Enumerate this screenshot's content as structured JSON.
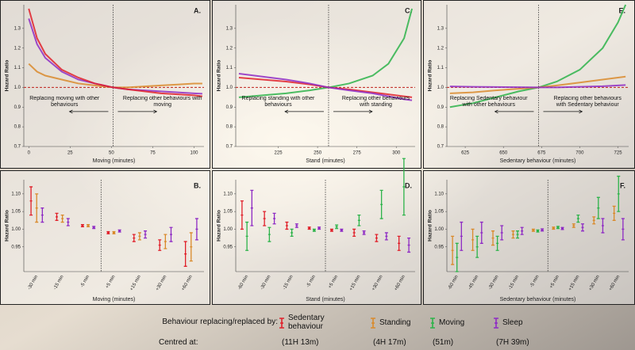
{
  "chart_data": [
    {
      "type": "line",
      "label": "A.",
      "y_label": "Hazard Ratio",
      "x_label": "Moving (minutes)",
      "xlim": [
        -3,
        106
      ],
      "xticks": [
        0,
        25,
        50,
        75,
        100
      ],
      "ylim": [
        0.7,
        1.42
      ],
      "yticks": [
        0.7,
        0.8,
        0.9,
        {
          "value": 1,
          "label": "1.0"
        },
        1.1,
        1.2,
        1.3
      ],
      "vline": 51,
      "hline": 1,
      "x": [
        0,
        5,
        10,
        20,
        30,
        40,
        51,
        60,
        70,
        80,
        90,
        100,
        105
      ],
      "series": [
        {
          "color": "#d98a2b",
          "values": [
            1.12,
            1.08,
            1.06,
            1.04,
            1.02,
            1.01,
            1.0,
            1.0,
            1.005,
            1.01,
            1.015,
            1.02,
            1.02
          ]
        },
        {
          "color": "#8e2bc4",
          "values": [
            1.35,
            1.22,
            1.15,
            1.08,
            1.04,
            1.02,
            1.0,
            0.99,
            0.985,
            0.98,
            0.975,
            0.97,
            0.968
          ]
        },
        {
          "color": "#e0202a",
          "values": [
            1.4,
            1.25,
            1.17,
            1.09,
            1.05,
            1.02,
            1.0,
            0.99,
            0.98,
            0.97,
            0.965,
            0.96,
            0.955
          ]
        }
      ],
      "annotations": [
        "Replacing moving with other behaviours",
        "Replacing other behaviours with moving"
      ]
    },
    {
      "type": "errorbar",
      "label": "B.",
      "y_label": "Hazard Ratio",
      "x_label": "Moving (minutes)",
      "categories": [
        "-30 min",
        "-15 min",
        "-5 min",
        "+5 min",
        "+15 min",
        "+30 min",
        "+60 min"
      ],
      "ylim": [
        0.88,
        1.14
      ],
      "yticks": [
        0.95,
        {
          "value": 1,
          "label": "1.00"
        },
        1.05,
        {
          "value": 1.1,
          "label": "1.10"
        }
      ],
      "series": [
        {
          "color": "#e0202a",
          "values": [
            1.08,
            1.035,
            1.01,
            0.99,
            0.975,
            0.955,
            0.93
          ],
          "errors": [
            0.04,
            0.01,
            0.003,
            0.003,
            0.01,
            0.015,
            0.035
          ]
        },
        {
          "color": "#d98a2b",
          "values": [
            1.06,
            1.03,
            1.01,
            0.99,
            0.98,
            0.965,
            0.95
          ],
          "errors": [
            0.04,
            0.01,
            0.003,
            0.003,
            0.01,
            0.02,
            0.04
          ]
        },
        {
          "color": "#8e2bc4",
          "values": [
            1.04,
            1.02,
            1.005,
            0.995,
            0.985,
            0.985,
            1.0
          ],
          "errors": [
            0.02,
            0.01,
            0.003,
            0.003,
            0.01,
            0.02,
            0.03
          ]
        }
      ]
    },
    {
      "type": "line",
      "label": "C.",
      "y_label": "Hazard Ratio",
      "x_label": "Stand (minutes)",
      "xlim": [
        198,
        312
      ],
      "xticks": [
        225,
        250,
        275,
        300
      ],
      "ylim": [
        0.7,
        1.42
      ],
      "yticks": [
        0.7,
        0.8,
        0.9,
        {
          "value": 1,
          "label": "1.0"
        },
        1.1,
        1.2,
        1.3
      ],
      "vline": 257,
      "hline": 1,
      "x": [
        200,
        215,
        230,
        245,
        257,
        270,
        285,
        295,
        305,
        310
      ],
      "series": [
        {
          "color": "#2db34a",
          "values": [
            0.95,
            0.96,
            0.97,
            0.985,
            1.0,
            1.02,
            1.06,
            1.12,
            1.25,
            1.4
          ]
        },
        {
          "color": "#e0202a",
          "values": [
            1.05,
            1.04,
            1.03,
            1.015,
            1.0,
            0.99,
            0.975,
            0.965,
            0.955,
            0.95
          ]
        },
        {
          "color": "#8e2bc4",
          "values": [
            1.07,
            1.055,
            1.04,
            1.02,
            1.0,
            0.985,
            0.97,
            0.955,
            0.94,
            0.935
          ]
        }
      ],
      "annotations": [
        "Replacing standing with other behaviours",
        "Replacing other behaviours with standing"
      ]
    },
    {
      "type": "errorbar",
      "label": "D.",
      "y_label": "Hazard Ratio",
      "x_label": "Stand (minutes)",
      "categories": [
        "-60 min",
        "-30 min",
        "-15 min",
        "-5 min",
        "+5 min",
        "+15 min",
        "+30 min",
        "+60 min"
      ],
      "ylim": [
        0.88,
        1.14
      ],
      "yticks": [
        0.95,
        {
          "value": 1,
          "label": "1.00"
        },
        1.05,
        {
          "value": 1.1,
          "label": "1.10"
        }
      ],
      "series": [
        {
          "color": "#e0202a",
          "values": [
            1.04,
            1.03,
            1.01,
            1.003,
            0.997,
            0.99,
            0.975,
            0.96
          ],
          "errors": [
            0.04,
            0.02,
            0.01,
            0.003,
            0.003,
            0.01,
            0.01,
            0.02
          ]
        },
        {
          "color": "#2db34a",
          "values": [
            0.98,
            0.985,
            0.99,
            0.997,
            1.007,
            1.025,
            1.07,
            1.12
          ],
          "errors": [
            0.04,
            0.02,
            0.01,
            0.003,
            0.005,
            0.015,
            0.04,
            0.08
          ]
        },
        {
          "color": "#8e2bc4",
          "values": [
            1.06,
            1.03,
            1.01,
            1.003,
            0.997,
            0.99,
            0.98,
            0.955
          ],
          "errors": [
            0.05,
            0.015,
            0.005,
            0.003,
            0.003,
            0.005,
            0.01,
            0.02
          ]
        }
      ]
    },
    {
      "type": "line",
      "label": "E.",
      "y_label": "Hazard Ratio",
      "x_label": "Sedentary behaviour (minutes)",
      "xlim": [
        613,
        732
      ],
      "xticks": [
        625,
        650,
        675,
        700,
        725
      ],
      "ylim": [
        0.7,
        1.42
      ],
      "yticks": [
        0.7,
        0.8,
        0.9,
        {
          "value": 1,
          "label": "1.0"
        },
        1.1,
        1.2,
        1.3
      ],
      "vline": 673,
      "hline": 1,
      "x": [
        615,
        630,
        645,
        660,
        673,
        685,
        700,
        715,
        725,
        730
      ],
      "series": [
        {
          "color": "#2db34a",
          "values": [
            0.9,
            0.92,
            0.95,
            0.98,
            1.0,
            1.03,
            1.09,
            1.2,
            1.33,
            1.42
          ]
        },
        {
          "color": "#d98a2b",
          "values": [
            0.97,
            0.975,
            0.985,
            0.993,
            1.0,
            1.01,
            1.025,
            1.04,
            1.05,
            1.055
          ]
        },
        {
          "color": "#8e2bc4",
          "values": [
            1.005,
            1.003,
            1.002,
            1.001,
            1.0,
            1.0,
            1.003,
            1.006,
            1.01,
            1.012
          ]
        }
      ],
      "annotations": [
        "Replacing Sedentary behaviour with other behaviours",
        "Replacing other behaviours with Sedentary behaviour"
      ]
    },
    {
      "type": "errorbar",
      "label": "F.",
      "y_label": "Hazard Ratio",
      "x_label": "Sedentary behaviour (minutes)",
      "categories": [
        "-60 min",
        "-45 min",
        "-30 min",
        "-15 min",
        "-5 min",
        "+5 min",
        "+15 min",
        "+30 min",
        "+60 min"
      ],
      "ylim": [
        0.88,
        1.14
      ],
      "yticks": [
        0.95,
        {
          "value": 1,
          "label": "1.00"
        },
        1.05,
        {
          "value": 1.1,
          "label": "1.10"
        }
      ],
      "series": [
        {
          "color": "#d98a2b",
          "values": [
            0.94,
            0.97,
            0.975,
            0.985,
            0.997,
            1.003,
            1.01,
            1.025,
            1.045
          ],
          "errors": [
            0.04,
            0.03,
            0.02,
            0.01,
            0.003,
            0.003,
            0.005,
            0.01,
            0.02
          ]
        },
        {
          "color": "#2db34a",
          "values": [
            0.92,
            0.95,
            0.96,
            0.985,
            0.995,
            1.005,
            1.03,
            1.06,
            1.1
          ],
          "errors": [
            0.04,
            0.03,
            0.02,
            0.01,
            0.003,
            0.003,
            0.01,
            0.03,
            0.05
          ]
        },
        {
          "color": "#8e2bc4",
          "values": [
            0.98,
            0.99,
            0.99,
            0.995,
            0.998,
            1.002,
            1.005,
            1.01,
            1.0
          ],
          "errors": [
            0.04,
            0.03,
            0.02,
            0.01,
            0.003,
            0.003,
            0.01,
            0.02,
            0.03
          ]
        }
      ]
    }
  ],
  "legend": {
    "title": "Behaviour replacing/replaced by:",
    "entries": [
      {
        "name": "Sedentary behaviour",
        "color": "#e0202a"
      },
      {
        "name": "Standing",
        "color": "#d98a2b"
      },
      {
        "name": "Moving",
        "color": "#2db34a"
      },
      {
        "name": "Sleep",
        "color": "#8e2bc4"
      }
    ],
    "centred_title": "Centred at:",
    "centred": [
      "(11H 13m)",
      "(4H 17m)",
      "(51m)",
      "(7H 39m)"
    ]
  }
}
